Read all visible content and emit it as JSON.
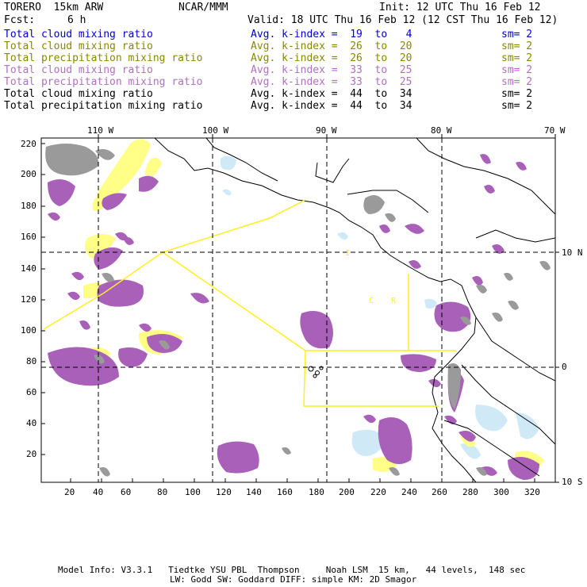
{
  "header": {
    "model": "TORERO  15km ARW",
    "org": "NCAR/MMM",
    "init": "Init: 12 UTC Thu 16 Feb 12",
    "fcst_label": "Fcst:",
    "fcst_value": "6 h",
    "valid": "Valid: 18 UTC Thu 16 Feb 12 (12 CST Thu 16 Feb 12)"
  },
  "legend": [
    {
      "field": "Total cloud mixing ratio",
      "index": "Avg. k-index =  19  to   4",
      "sm": "sm= 2",
      "color": "#0000cc"
    },
    {
      "field": "Total cloud mixing ratio",
      "index": "Avg. k-index =  26  to  20",
      "sm": "sm= 2",
      "color": "#888800"
    },
    {
      "field": "Total precipitation mixing ratio",
      "index": "Avg. k-index =  26  to  20",
      "sm": "sm= 2",
      "color": "#888800"
    },
    {
      "field": "Total cloud mixing ratio",
      "index": "Avg. k-index =  33  to  25",
      "sm": "sm= 2",
      "color": "#b070c0"
    },
    {
      "field": "Total precipitation mixing ratio",
      "index": "Avg. k-index =  33  to  25",
      "sm": "sm= 2",
      "color": "#b070c0"
    },
    {
      "field": "Total cloud mixing ratio",
      "index": "Avg. k-index =  44  to  34",
      "sm": "sm= 2",
      "color": "#000000"
    },
    {
      "field": "Total precipitation mixing ratio",
      "index": "Avg. k-index =  44  to  34",
      "sm": "sm= 2",
      "color": "#000000"
    }
  ],
  "map": {
    "lon_labels": [
      "110 W",
      "100 W",
      "90 W",
      "80 W",
      "70 W"
    ],
    "lat_labels": [
      "10 N",
      "0",
      "10 S"
    ],
    "y_ticks": [
      "220",
      "200",
      "180",
      "160",
      "140",
      "120",
      "100",
      "80",
      "60",
      "40",
      "20"
    ],
    "x_ticks": [
      "20",
      "40",
      "60",
      "80",
      "100",
      "120",
      "140",
      "160",
      "180",
      "200",
      "220",
      "240",
      "260",
      "280",
      "300",
      "320"
    ],
    "annotations": [
      "C",
      "R",
      "I"
    ],
    "colors": {
      "purple": "#a860b8",
      "gray": "#9a9a9a",
      "yellow": "#ffff88",
      "lightblue": "#cfe9f7",
      "boundary": "#ffee22"
    }
  },
  "footer": {
    "line1": "Model Info: V3.3.1   Tiedtke YSU PBL  Thompson     Noah LSM  15 km,   44 levels,  148 sec",
    "line2": "LW: Godd SW: Goddard DIFF: simple KM: 2D Smagor"
  }
}
